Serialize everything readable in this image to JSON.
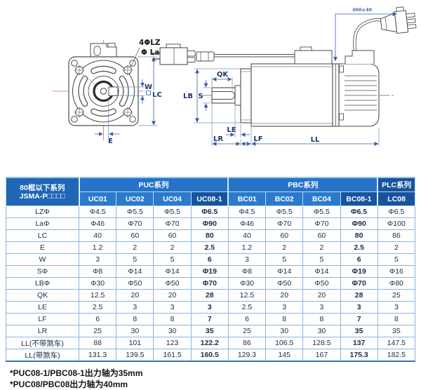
{
  "diagram": {
    "labels": {
      "lz": "4ΦLZ",
      "la": "Φ La",
      "w": "W",
      "lc": "LC",
      "e": "E",
      "qk": "QK",
      "lb": "LB",
      "s": "S",
      "le": "LE",
      "lr": "LR",
      "lf": "LF",
      "ll": "LL",
      "cable": "300±30"
    }
  },
  "table": {
    "corner_header": {
      "line1": "80框以下系列",
      "line2": "JSMA-P□□□□"
    },
    "groups": [
      {
        "label": "PUC系列",
        "cols": [
          "UC01",
          "UC02",
          "UC04",
          "UC08-1"
        ]
      },
      {
        "label": "PBC系列",
        "cols": [
          "BC01",
          "BC02",
          "BC04",
          "BC08-1"
        ]
      },
      {
        "label": "PLC系列",
        "cols": [
          "LC08"
        ]
      }
    ],
    "rows": [
      {
        "label": "LZΦ",
        "values": [
          "Φ4.5",
          "Φ5.5",
          "Φ5.5",
          "Φ6.5",
          "Φ4.5",
          "Φ5.5",
          "Φ5.5",
          "Φ6.5",
          "Φ6.5"
        ]
      },
      {
        "label": "LaΦ",
        "values": [
          "Φ46",
          "Φ70",
          "Φ70",
          "Φ90",
          "Φ46",
          "Φ70",
          "Φ70",
          "Φ90",
          "Φ100"
        ]
      },
      {
        "label": "LC",
        "values": [
          "40",
          "60",
          "60",
          "80",
          "40",
          "60",
          "60",
          "80",
          "86"
        ]
      },
      {
        "label": "E",
        "values": [
          "1.2",
          "2",
          "2",
          "2.5",
          "1.2",
          "2",
          "2",
          "2.5",
          "2"
        ]
      },
      {
        "label": "W",
        "values": [
          "3",
          "5",
          "5",
          "6",
          "3",
          "5",
          "5",
          "6",
          "5"
        ]
      },
      {
        "label": "SΦ",
        "values": [
          "Φ8",
          "Φ14",
          "Φ14",
          "Φ19",
          "Φ8",
          "Φ14",
          "Φ14",
          "Φ19",
          "Φ16"
        ]
      },
      {
        "label": "LBΦ",
        "values": [
          "Φ30",
          "Φ50",
          "Φ50",
          "Φ70",
          "Φ30",
          "Φ50",
          "Φ50",
          "Φ70",
          "Φ80"
        ]
      },
      {
        "label": "QK",
        "values": [
          "12.5",
          "20",
          "20",
          "28",
          "12.5",
          "20",
          "20",
          "28",
          "25"
        ]
      },
      {
        "label": "LE",
        "values": [
          "2.5",
          "3",
          "3",
          "3",
          "2.5",
          "3",
          "3",
          "3",
          "3"
        ]
      },
      {
        "label": "LF",
        "values": [
          "6",
          "8",
          "8",
          "7",
          "6",
          "8",
          "8",
          "7",
          "8"
        ]
      },
      {
        "label": "LR",
        "values": [
          "25",
          "30",
          "30",
          "35",
          "25",
          "30",
          "30",
          "35",
          "35"
        ]
      },
      {
        "label": "LL(不带煞车)",
        "values": [
          "88",
          "101",
          "123",
          "122.2",
          "86",
          "106.5",
          "128.5",
          "137",
          "147.5"
        ]
      },
      {
        "label": "LL(带煞车)",
        "values": [
          "131.3",
          "139.5",
          "161.5",
          "160.5",
          "129.3",
          "145",
          "167",
          "175.3",
          "182.5"
        ]
      }
    ]
  },
  "footnotes": [
    "*PUC08-1/PBC08-1出力轴为35mm",
    "*PUC08/PBC08出力轴为40mm"
  ]
}
